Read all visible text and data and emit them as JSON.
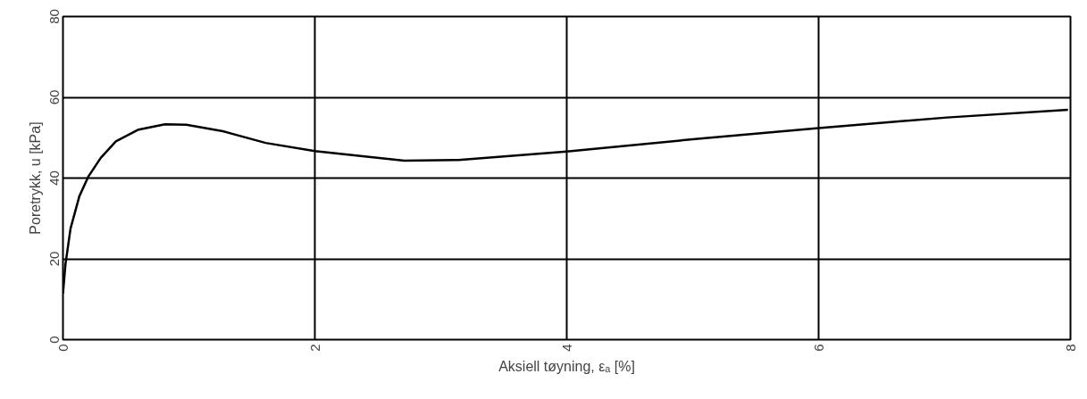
{
  "chart_data": {
    "type": "line",
    "xlabel": "Aksiell tøyning, εₐ [%]",
    "ylabel": "Poretrykk, u [kPa]",
    "xlim": [
      0,
      8
    ],
    "ylim": [
      0,
      80
    ],
    "xticks": [
      0,
      2,
      4,
      6,
      8
    ],
    "yticks": [
      0,
      20,
      40,
      60,
      80
    ],
    "grid": true,
    "marker": "none",
    "line_style": "solid",
    "series": [
      {
        "color": "#000000",
        "x": [
          0,
          0.02,
          0.06,
          0.13,
          0.2,
          0.3,
          0.42,
          0.6,
          0.81,
          0.98,
          1.27,
          1.61,
          2.0,
          2.71,
          3.14,
          4.0,
          5.1,
          6.0,
          7.02,
          7.98
        ],
        "values": [
          11.4,
          18.7,
          27.5,
          35.5,
          40.3,
          45,
          49.1,
          52,
          53.3,
          53.2,
          51.6,
          48.7,
          46.7,
          44.3,
          44.5,
          46.6,
          49.9,
          52.4,
          55,
          56.9
        ]
      }
    ]
  }
}
